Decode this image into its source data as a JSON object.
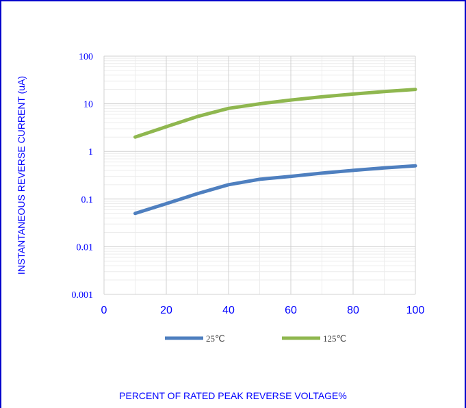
{
  "chart_data": {
    "type": "line",
    "xlabel": "PERCENT OF RATED PEAK REVERSE VOLTAGE%",
    "ylabel": "INSTANTANEOUS REVERSE CURRENT (uA)",
    "x_ticks": [
      "0",
      "20",
      "40",
      "60",
      "80",
      "100"
    ],
    "y_ticks": [
      "0.001",
      "0.01",
      "0.1",
      "1",
      "10",
      "100"
    ],
    "xlim": [
      0,
      100
    ],
    "ylim": [
      0.001,
      100
    ],
    "y_scale": "log",
    "grid": true,
    "legend_position": "bottom",
    "series": [
      {
        "name": "25℃",
        "color": "#4e7fbf",
        "x": [
          10,
          20,
          30,
          40,
          50,
          60,
          70,
          80,
          90,
          100
        ],
        "y": [
          0.05,
          0.08,
          0.13,
          0.2,
          0.26,
          0.3,
          0.35,
          0.4,
          0.45,
          0.5
        ]
      },
      {
        "name": "125℃",
        "color": "#8fb74f",
        "x": [
          10,
          20,
          30,
          40,
          50,
          60,
          70,
          80,
          90,
          100
        ],
        "y": [
          2,
          3.3,
          5.4,
          8,
          10,
          12,
          14,
          16,
          18,
          20
        ]
      }
    ]
  }
}
